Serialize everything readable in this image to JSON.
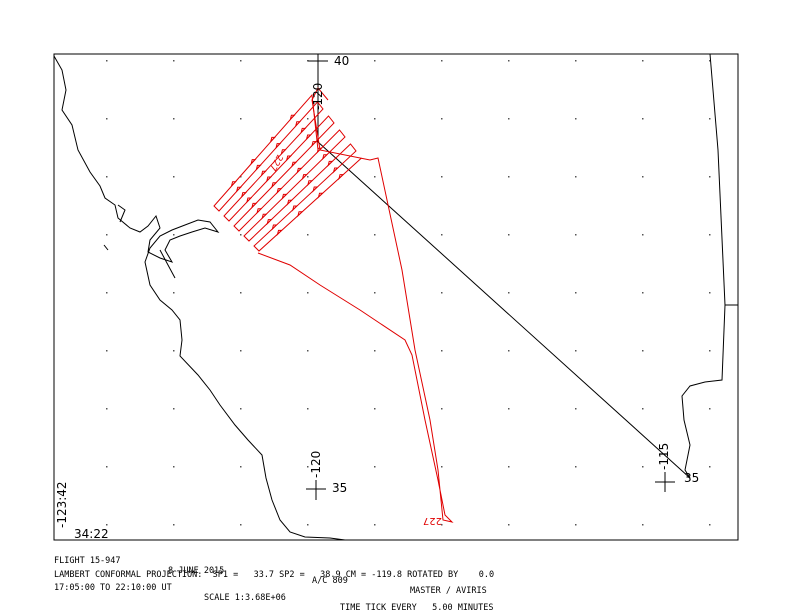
{
  "map": {
    "labels": {
      "lat_top": "40",
      "lon_top": "-120",
      "lon_bottom": "-120",
      "lat_bottom": "35",
      "lon_right": "-115",
      "lat_right": "35",
      "lon_corner": "-123:42",
      "lat_corner": "34:22",
      "track_tag_top": "227",
      "track_tag_bottom": "227"
    },
    "footer": {
      "flight": "FLIGHT 15-947",
      "date": "8 JUNE 2015",
      "aircraft": "A/C 809",
      "instrument": "MASTER / AVIRIS",
      "projection": "LAMBERT CONFORMAL PROJECTION:  SP1 =   33.7 SP2 =   38.9 CM = -119.8 ROTATED BY    0.0",
      "time_range": "17:05:00 TO 22:10:00 UT",
      "scale": "SCALE 1:3.68E+06",
      "time_tick": "TIME TICK EVERY   5.00 MINUTES"
    }
  }
}
